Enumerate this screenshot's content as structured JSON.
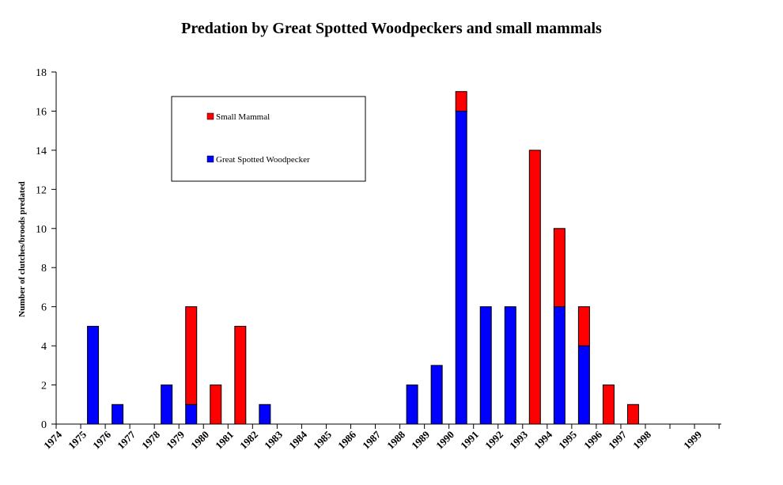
{
  "chart_data": {
    "type": "bar",
    "stacked": true,
    "title": "Predation by Great Spotted Woodpeckers and small mammals",
    "xlabel": "",
    "ylabel": "Number of clutches/broods predated",
    "ylim": [
      0,
      18
    ],
    "yticks": [
      0,
      2,
      4,
      6,
      8,
      10,
      12,
      14,
      16,
      18
    ],
    "grid": false,
    "legend_position": "top-left",
    "xtick_labels": [
      "1974",
      "1975",
      "1976",
      "1977",
      "1978",
      "1979",
      "1980",
      "1981",
      "1982",
      "1983",
      "1984",
      "1985",
      "1986",
      "1987",
      "1988",
      "1989",
      "1990",
      "1991",
      "1992",
      "1993",
      "1994",
      "1995",
      "1996",
      "1997",
      "1998",
      "1999"
    ],
    "categories": [
      "1975",
      "1976",
      "1977",
      "1978",
      "1979",
      "1980",
      "1981",
      "1982",
      "1983",
      "1984",
      "1985",
      "1986",
      "1987",
      "1988",
      "1989",
      "1990",
      "1991",
      "1992",
      "1993",
      "1994",
      "1995",
      "1996",
      "1997",
      "1998"
    ],
    "series": [
      {
        "name": "Great Spotted Woodpecker",
        "color": "#0000ff",
        "values": [
          5,
          1,
          0,
          2,
          1,
          0,
          0,
          1,
          0,
          0,
          0,
          0,
          0,
          2,
          3,
          16,
          6,
          6,
          0,
          6,
          4,
          0,
          0,
          0
        ]
      },
      {
        "name": "Small Mammal",
        "color": "#ff0000",
        "values": [
          0,
          0,
          0,
          0,
          5,
          2,
          5,
          0,
          0,
          0,
          0,
          0,
          0,
          0,
          0,
          1,
          0,
          0,
          14,
          4,
          2,
          2,
          1,
          0
        ]
      }
    ],
    "legend_order": [
      "Small Mammal",
      "Great Spotted Woodpecker"
    ]
  }
}
